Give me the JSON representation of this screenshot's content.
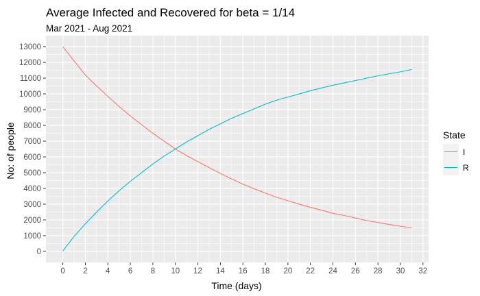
{
  "chart_data": {
    "type": "line",
    "title": "Average Infected and Recovered for beta = 1/14",
    "subtitle": "Mar 2021 - Aug 2021",
    "xlabel": "Time (days)",
    "ylabel": "No: of people",
    "xlim": [
      -1.5,
      32.5
    ],
    "ylim": [
      -700,
      13700
    ],
    "x_ticks": [
      0,
      2,
      4,
      6,
      8,
      10,
      12,
      14,
      16,
      18,
      20,
      22,
      24,
      26,
      28,
      30,
      32
    ],
    "y_ticks": [
      0,
      1000,
      2000,
      3000,
      4000,
      5000,
      6000,
      7000,
      8000,
      9000,
      10000,
      11000,
      12000,
      13000
    ],
    "grid": true,
    "legend": {
      "title": "State",
      "position": "right"
    },
    "x": [
      0,
      1,
      2,
      3,
      4,
      5,
      6,
      7,
      8,
      9,
      10,
      11,
      12,
      13,
      14,
      15,
      16,
      17,
      18,
      19,
      20,
      21,
      22,
      23,
      24,
      25,
      26,
      27,
      28,
      29,
      30,
      31
    ],
    "series": [
      {
        "name": "I",
        "color": "#F8766D",
        "values": [
          13000,
          12100,
          11200,
          10500,
          9850,
          9200,
          8600,
          8050,
          7500,
          7000,
          6500,
          6080,
          5700,
          5320,
          4950,
          4600,
          4270,
          3980,
          3700,
          3440,
          3220,
          3000,
          2800,
          2620,
          2420,
          2280,
          2120,
          1960,
          1840,
          1710,
          1600,
          1500
        ]
      },
      {
        "name": "R",
        "color": "#00BFC4",
        "values": [
          30,
          950,
          1750,
          2500,
          3200,
          3850,
          4450,
          5000,
          5550,
          6050,
          6500,
          6950,
          7350,
          7750,
          8100,
          8450,
          8750,
          9050,
          9350,
          9600,
          9800,
          10000,
          10200,
          10380,
          10550,
          10700,
          10850,
          11000,
          11150,
          11280,
          11400,
          11550
        ]
      }
    ]
  }
}
